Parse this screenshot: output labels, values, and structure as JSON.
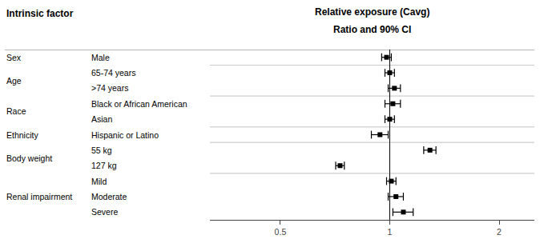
{
  "chart_data": {
    "type": "forest",
    "title": "Relative exposure (Cavg)",
    "subtitle": "Ratio and 90% CI",
    "ylabel": "Intrinsic factor",
    "categories": [
      "Male",
      "65-74 years",
      ">74 years",
      "Black or African American",
      "Asian",
      "Hispanic or Latino",
      "55 kg",
      "127 kg",
      "Mild",
      "Moderate",
      "Severe"
    ],
    "groups": [
      "Sex",
      "Age",
      "Age",
      "Race",
      "Race",
      "Ethnicity",
      "Body weight",
      "Body weight",
      "Renal impairment",
      "Renal impairment",
      "Renal impairment"
    ],
    "values": [
      0.98,
      1.0,
      1.03,
      1.02,
      1.0,
      0.94,
      1.29,
      0.73,
      1.01,
      1.04,
      1.09
    ],
    "lo": [
      0.95,
      0.97,
      0.99,
      0.97,
      0.97,
      0.89,
      1.24,
      0.71,
      0.98,
      0.99,
      1.02
    ],
    "hi": [
      1.01,
      1.03,
      1.07,
      1.07,
      1.03,
      0.99,
      1.34,
      0.75,
      1.04,
      1.09,
      1.16
    ],
    "reference_line": 1.0,
    "xlim": [
      0.32,
      2.5
    ],
    "xticks": [
      0.5,
      1,
      2
    ],
    "log": "x",
    "grid": false,
    "color": "#000000"
  }
}
